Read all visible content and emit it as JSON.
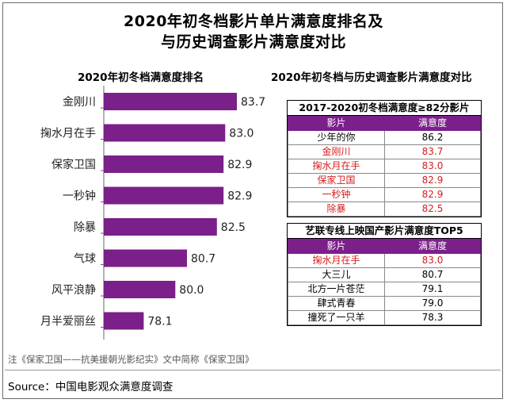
{
  "title_line1": "2020年初冬档影片单片满意度排名及",
  "title_line2": "与历史调查影片满意度对比",
  "chart_data": {
    "type": "bar",
    "title": "2020年初冬档满意度排名",
    "categories": [
      "金刚川",
      "掬水月在手",
      "保家卫国",
      "一秒钟",
      "除暴",
      "气球",
      "风平浪静",
      "月半爱丽丝"
    ],
    "values": [
      83.7,
      83.0,
      82.9,
      82.9,
      82.5,
      80.7,
      80.0,
      78.1
    ],
    "orientation": "horizontal",
    "bar_color": "#7b1f8a",
    "grid": false
  },
  "comparison": {
    "title": "2020年初冬档与历史调查影片满意度对比",
    "table1": {
      "title": "2017-2020初冬档满意度≥82分影片",
      "header": [
        "影片",
        "满意度"
      ],
      "rows": [
        {
          "film": "少年的你",
          "score": "86.2",
          "highlight": false
        },
        {
          "film": "金刚川",
          "score": "83.7",
          "highlight": true
        },
        {
          "film": "掬水月在手",
          "score": "83.0",
          "highlight": true
        },
        {
          "film": "保家卫国",
          "score": "82.9",
          "highlight": true
        },
        {
          "film": "一秒钟",
          "score": "82.9",
          "highlight": true
        },
        {
          "film": "除暴",
          "score": "82.5",
          "highlight": true
        }
      ]
    },
    "table2": {
      "title": "艺联专线上映国产影片满意度TOP5",
      "header": [
        "影片",
        "满意度"
      ],
      "rows": [
        {
          "film": "掬水月在手",
          "score": "83.0",
          "highlight": true
        },
        {
          "film": "大三儿",
          "score": "80.7",
          "highlight": false
        },
        {
          "film": "北方一片苍茫",
          "score": "79.1",
          "highlight": false
        },
        {
          "film": "肆式青春",
          "score": "79.0",
          "highlight": false
        },
        {
          "film": "撞死了一只羊",
          "score": "78.3",
          "highlight": false
        }
      ]
    },
    "highlight_color": "#d61e1e",
    "header_color": "#7b1f8a"
  },
  "note": "注《保家卫国——抗美援朝光影纪实》文中简称《保家卫国》",
  "source": "Source：中国电影观众满意度调查"
}
